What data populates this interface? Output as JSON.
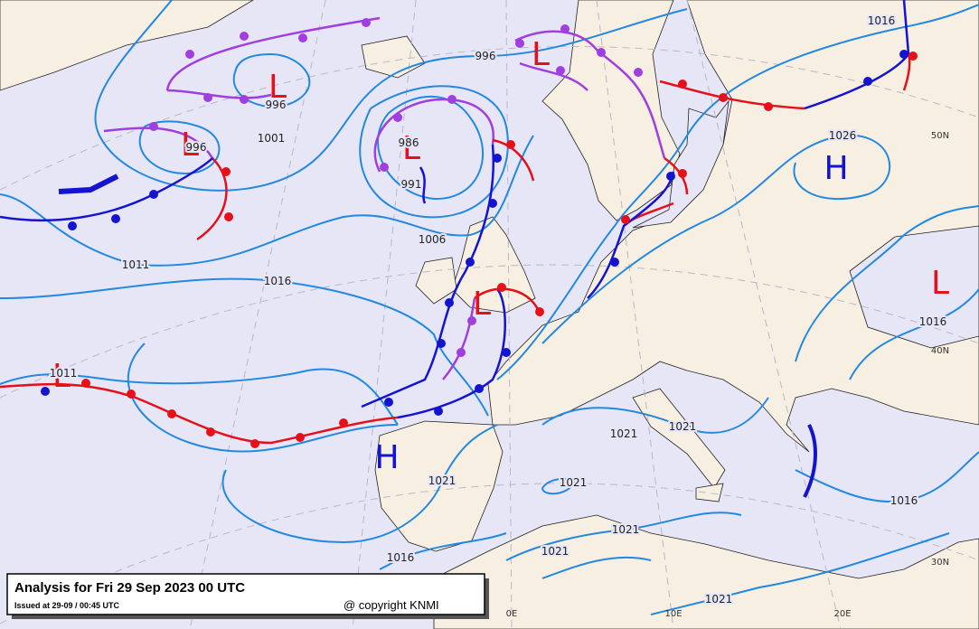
{
  "title": "Analysis for Fri 29 Sep 2023 00 UTC",
  "issued": "Issued at 29-09 / 00:45 UTC",
  "copyright": "@ copyright KNMI",
  "pressure_centers": [
    "L",
    "L",
    "L",
    "L",
    "L",
    "L",
    "L",
    "H",
    "H"
  ],
  "isobar_labels": [
    "996",
    "1016",
    "996",
    "1001",
    "996",
    "986",
    "991",
    "1006",
    "1011",
    "1016",
    "1011",
    "1026",
    "1016",
    "1021",
    "1021",
    "1021",
    "1021",
    "1016",
    "1021",
    "1021",
    "1016",
    "1021"
  ],
  "grid_labels": [
    "50N",
    "40N",
    "30N",
    "0E",
    "10E",
    "20E"
  ]
}
